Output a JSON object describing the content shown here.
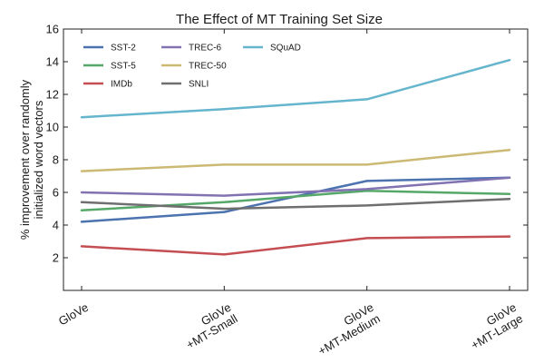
{
  "chart_data": {
    "type": "line",
    "title": "The Effect of MT Training Set Size",
    "xlabel": "",
    "ylabel_line1": "% improvement over randomly",
    "ylabel_line2": "initialized word vectors",
    "categories": [
      [
        "GloVe"
      ],
      [
        "GloVe",
        "+MT-Small"
      ],
      [
        "GloVe",
        "+MT-Medium"
      ],
      [
        "GloVe",
        "+MT-Large"
      ]
    ],
    "ylim": [
      0,
      16
    ],
    "yticks": [
      2,
      4,
      6,
      8,
      10,
      12,
      14,
      16
    ],
    "grid": false,
    "legend_position": "top-left",
    "series": [
      {
        "name": "SST-2",
        "color": "#4c72b0",
        "values": [
          4.2,
          4.8,
          6.7,
          6.9
        ]
      },
      {
        "name": "SST-5",
        "color": "#55a868",
        "values": [
          4.9,
          5.4,
          6.1,
          5.9
        ]
      },
      {
        "name": "IMDb",
        "color": "#c44e52",
        "values": [
          2.7,
          2.2,
          3.2,
          3.3
        ]
      },
      {
        "name": "TREC-6",
        "color": "#8172b2",
        "values": [
          6.0,
          5.8,
          6.2,
          6.9
        ]
      },
      {
        "name": "TREC-50",
        "color": "#ccb974",
        "values": [
          7.3,
          7.7,
          7.7,
          8.6
        ]
      },
      {
        "name": "SNLI",
        "color": "#6f6f6f",
        "values": [
          5.4,
          5.0,
          5.2,
          5.6
        ]
      },
      {
        "name": "SQuAD",
        "color": "#64b5cd",
        "values": [
          10.6,
          11.1,
          11.7,
          14.1
        ]
      }
    ]
  }
}
